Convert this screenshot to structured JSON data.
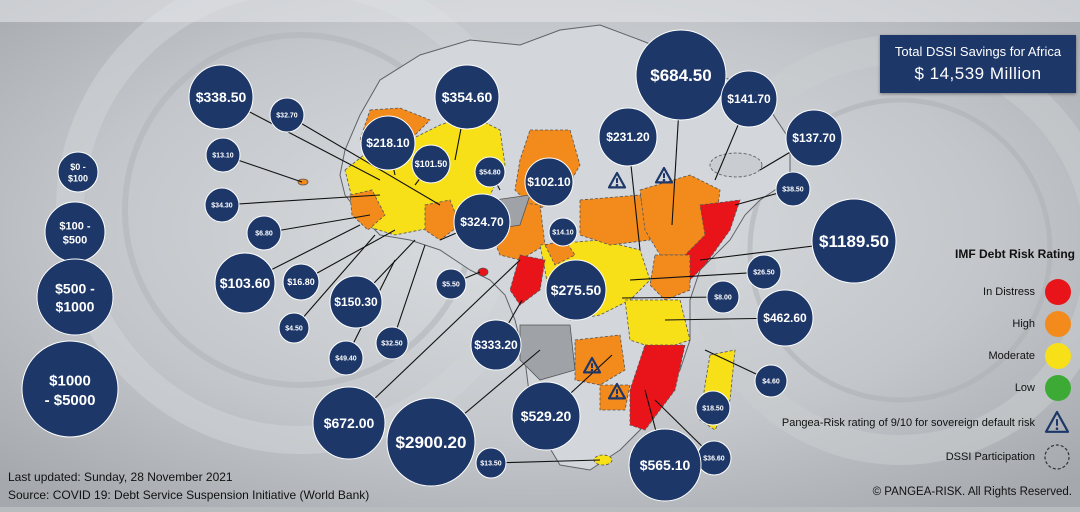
{
  "summary": {
    "title": "Total DSSI Savings for Africa",
    "value": "$ 14,539 Million"
  },
  "size_legend": [
    {
      "label": "$0 - $100",
      "lines": [
        "$0 -",
        "$100"
      ]
    },
    {
      "label": "$100 - $500",
      "lines": [
        "$100 -",
        "$500"
      ]
    },
    {
      "label": "$500 - $1000",
      "lines": [
        "$500 -",
        "$1000"
      ]
    },
    {
      "label": "$1000 - $5000",
      "lines": [
        "$1000",
        "- $5000"
      ]
    }
  ],
  "risk_legend": {
    "title": "IMF Debt Risk Rating",
    "items": [
      {
        "label": "In Distress",
        "color": "#e8141a"
      },
      {
        "label": "High",
        "color": "#f38b1c"
      },
      {
        "label": "Moderate",
        "color": "#f7e017"
      },
      {
        "label": "Low",
        "color": "#3daa35"
      }
    ],
    "warning_label": "Pangea-Risk rating of 9/10 for sovereign default risk",
    "dssi_label": "DSSI Participation"
  },
  "savings_bubbles": [
    "$684.50",
    "$141.70",
    "$354.60",
    "$338.50",
    "$32.70",
    "$218.10",
    "$101.50",
    "$231.20",
    "$137.70",
    "$13.10",
    "$54.80",
    "$102.10",
    "$34.30",
    "$38.50",
    "$1189.50",
    "$6.80",
    "$324.70",
    "$14.10",
    "$103.60",
    "$16.80",
    "$5.50",
    "$275.50",
    "$26.50",
    "$8.00",
    "$150.30",
    "$4.50",
    "$462.60",
    "$32.50",
    "$333.20",
    "$49.40",
    "$4.60",
    "$672.00",
    "$2900.20",
    "$529.20",
    "$18.50",
    "$36.60",
    "$565.10",
    "$13.50"
  ],
  "footer": {
    "updated": "Last updated: Sunday, 28 November 2021",
    "source": "Source: COVID 19: Debt Service Suspension Initiative (World Bank)",
    "copyright": "© PANGEA-RISK. All Rights Reserved."
  },
  "colors": {
    "bubble": "#1d3769",
    "non_dssi_country": "#d3d6da",
    "in_distress": "#e8141a",
    "high": "#f38b1c",
    "moderate": "#f7e017",
    "low": "#3daa35",
    "gray_country": "#9fa3a7"
  }
}
